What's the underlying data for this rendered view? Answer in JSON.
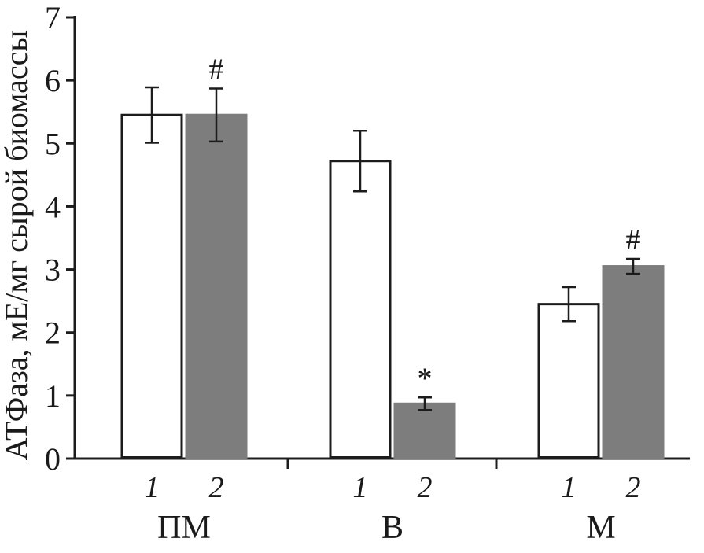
{
  "figure": {
    "background": "#ffffff",
    "axis_color": "#1c1c1c"
  },
  "chart_data": {
    "type": "bar",
    "title": "",
    "ylabel": "АТФаза, мЕ/мг сырой биомассы",
    "xlabel": "",
    "ylim": [
      0,
      7
    ],
    "yticks": [
      0,
      1,
      2,
      3,
      4,
      5,
      6,
      7
    ],
    "grid": false,
    "legend": "none",
    "series_styles": [
      {
        "name": "1",
        "fill": "#ffffff",
        "stroke": "#1c1c1c"
      },
      {
        "name": "2",
        "fill": "#7d7d7d",
        "stroke": "#7d7d7d"
      }
    ],
    "groups": [
      {
        "label": "ПМ",
        "bars": [
          {
            "series": "1",
            "value": 5.45,
            "error": 0.44,
            "annotation": ""
          },
          {
            "series": "2",
            "value": 5.45,
            "error": 0.42,
            "annotation": "#"
          }
        ]
      },
      {
        "label": "В",
        "bars": [
          {
            "series": "1",
            "value": 4.72,
            "error": 0.48,
            "annotation": ""
          },
          {
            "series": "2",
            "value": 0.87,
            "error": 0.1,
            "annotation": "*"
          }
        ]
      },
      {
        "label": "М",
        "bars": [
          {
            "series": "1",
            "value": 2.45,
            "error": 0.27,
            "annotation": ""
          },
          {
            "series": "2",
            "value": 3.05,
            "error": 0.12,
            "annotation": "#"
          }
        ]
      }
    ]
  }
}
